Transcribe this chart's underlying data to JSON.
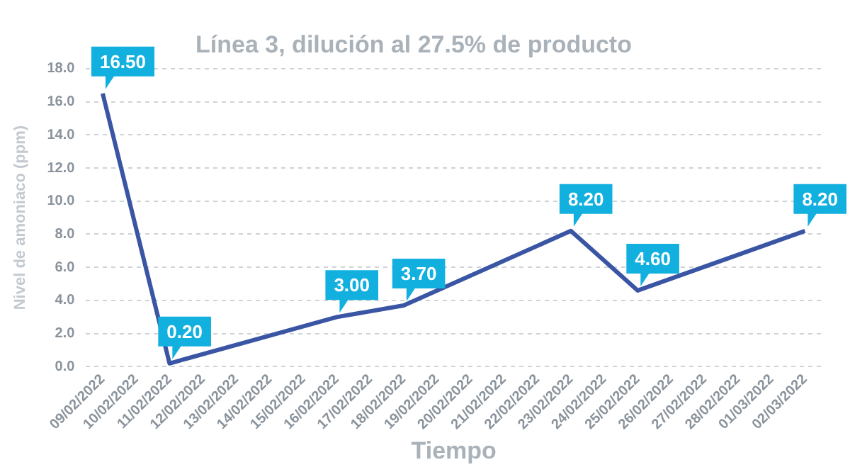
{
  "chart_data": {
    "type": "line",
    "title": "Línea 3, dilución al 27.5% de producto",
    "xlabel": "Tiempo",
    "ylabel": "Nivel de amoniaco (ppm)",
    "categories": [
      "09/02/2022",
      "10/02/2022",
      "11/02/2022",
      "12/02/2022",
      "13/02/2022",
      "14/02/2022",
      "15/02/2022",
      "16/02/2022",
      "17/02/2022",
      "18/02/2022",
      "19/02/2022",
      "20/02/2022",
      "21/02/2022",
      "22/02/2022",
      "23/02/2022",
      "24/02/2022",
      "25/02/2022",
      "26/02/2022",
      "27/02/2022",
      "28/02/2022",
      "01/03/2022",
      "02/03/2022"
    ],
    "series": [
      {
        "color": "#3a55a4",
        "values": [
          16.5,
          null,
          0.2,
          null,
          null,
          null,
          null,
          3.0,
          null,
          3.7,
          null,
          null,
          null,
          null,
          8.2,
          null,
          4.6,
          null,
          null,
          null,
          null,
          8.2
        ],
        "value_labels": [
          "16.50",
          null,
          "0.20",
          null,
          null,
          null,
          null,
          "3.00",
          null,
          "3.70",
          null,
          null,
          null,
          null,
          "8.20",
          null,
          "4.60",
          null,
          null,
          null,
          null,
          "8.20"
        ]
      }
    ],
    "ylim": [
      0,
      18
    ],
    "yticks": [
      {
        "value": 0,
        "label": "0.0"
      },
      {
        "value": 2,
        "label": "2.0"
      },
      {
        "value": 4,
        "label": "4.0"
      },
      {
        "value": 6,
        "label": "6.0"
      },
      {
        "value": 8,
        "label": "8.0"
      },
      {
        "value": 10,
        "label": "10.0"
      },
      {
        "value": 12,
        "label": "12.0"
      },
      {
        "value": 14,
        "label": "14.0"
      },
      {
        "value": 16,
        "label": "16.0"
      },
      {
        "value": 18,
        "label": "18.0"
      }
    ],
    "grid": "y",
    "legend": false,
    "marker": "none",
    "line_style": "solid"
  }
}
